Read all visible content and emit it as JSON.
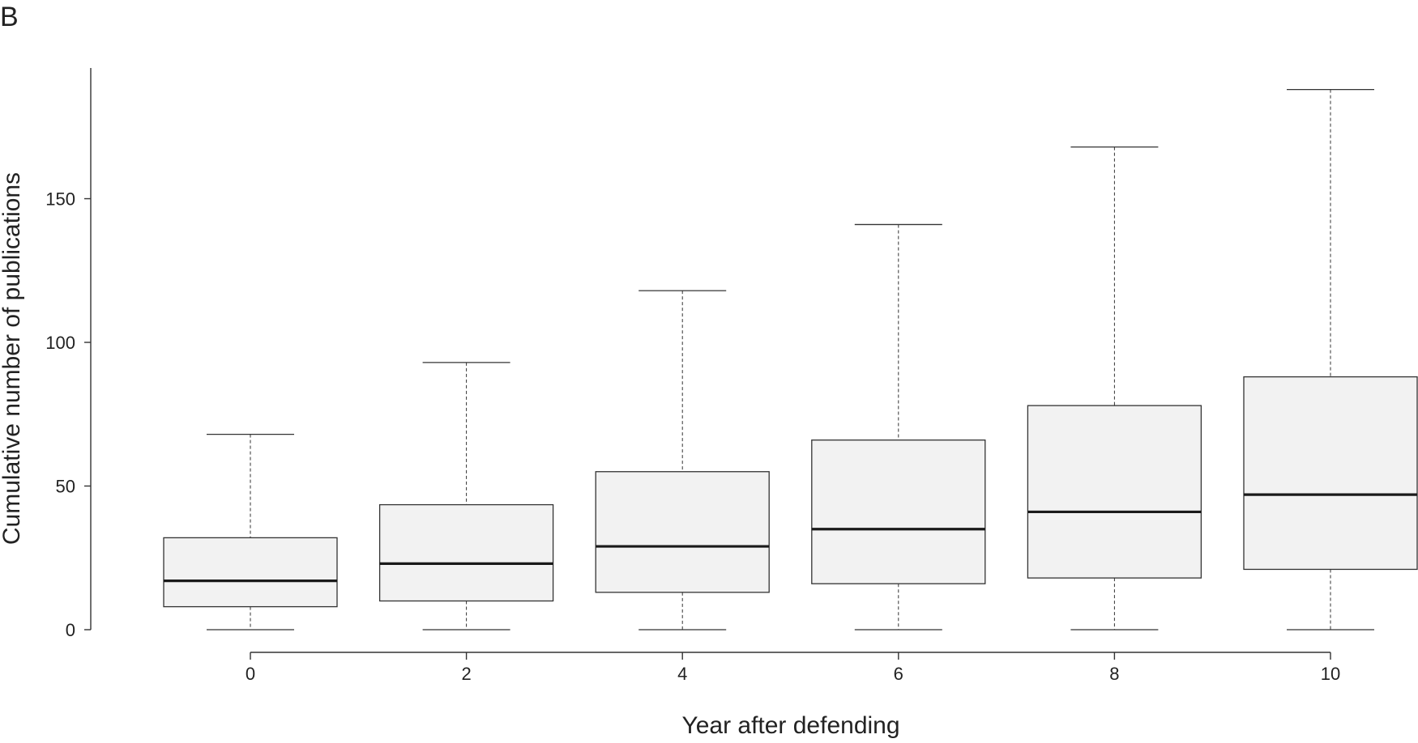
{
  "chart_data": {
    "type": "box",
    "panel_label": "B",
    "title": "",
    "xlabel": "Year after defending",
    "ylabel": "Cumulative number of publications",
    "x_tick_labels": [
      "0",
      "2",
      "4",
      "6",
      "8",
      "10"
    ],
    "y_ticks": [
      0,
      50,
      100,
      150
    ],
    "y_tick_labels": [
      "0",
      "50",
      "100",
      "150"
    ],
    "ylim": [
      0,
      200
    ],
    "grid": false,
    "colors": {
      "box_fill": "#f2f2f2",
      "stroke": "#333333",
      "median": "#1a1a1a"
    },
    "boxes": [
      {
        "x": 0,
        "whisker_low": 0,
        "q1": 8,
        "median": 17,
        "q3": 32,
        "whisker_high": 68
      },
      {
        "x": 2,
        "whisker_low": 0,
        "q1": 10,
        "median": 23,
        "q3": 43.5,
        "whisker_high": 93
      },
      {
        "x": 4,
        "whisker_low": 0,
        "q1": 13,
        "median": 29,
        "q3": 55,
        "whisker_high": 118
      },
      {
        "x": 6,
        "whisker_low": 0,
        "q1": 16,
        "median": 35,
        "q3": 66,
        "whisker_high": 141
      },
      {
        "x": 8,
        "whisker_low": 0,
        "q1": 18,
        "median": 41,
        "q3": 78,
        "whisker_high": 168
      },
      {
        "x": 10,
        "whisker_low": 0,
        "q1": 21,
        "median": 47,
        "q3": 88,
        "whisker_high": 188
      }
    ]
  }
}
